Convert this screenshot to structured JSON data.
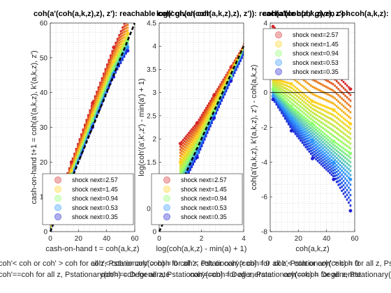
{
  "bottom_notes": [
    "coh'< coh or coh' > coh for all z, Pstationary(coh) = 0",
    "coh'==coh for all z, Pstationary(coh) = Degenerate"
  ],
  "colors": {
    "shock_2_57": "#d62728",
    "shock_1_45": "#ffd21e",
    "shock_0_94": "#8cff6e",
    "shock_0_53": "#2d96ff",
    "shock_0_35": "#1e1ed2",
    "diagonal": "#000000",
    "zero_line": "#000000"
  },
  "chart_data": [
    {
      "type": "scatter",
      "title": "coh(a'(coh(a,k,z),z), z'): reachable coh' given coh",
      "xlabel": "cash-on-hand t = coh(a,k,z)",
      "ylabel": "cash-on-hand t+1 = coh(a'(a,k,z), k'(a,k,z), z')",
      "xlim": [
        0,
        60
      ],
      "ylim": [
        0,
        60
      ],
      "xticks": [
        0,
        20,
        40,
        60
      ],
      "yticks": [
        0,
        10,
        20,
        30,
        40,
        50,
        60
      ],
      "grid": true,
      "legend_position": "bottom-right",
      "reference_line": "45-degree dashed",
      "series": [
        {
          "name": "shock next=2.57",
          "color": "#d62728",
          "x": [
            0,
            15,
            30,
            45,
            55
          ],
          "y": [
            2.6,
            20.0,
            37.0,
            53.0,
            62.0
          ]
        },
        {
          "name": "shock next=1.45",
          "color": "#ffd21e",
          "x": [
            0,
            15,
            30,
            45,
            55
          ],
          "y": [
            1.5,
            17.5,
            33.5,
            49.0,
            57.0
          ]
        },
        {
          "name": "shock next=0.94",
          "color": "#8cff6e",
          "x": [
            0,
            15,
            30,
            45,
            55
          ],
          "y": [
            0.9,
            16.5,
            32.0,
            47.0,
            55.0
          ]
        },
        {
          "name": "shock next=0.53",
          "color": "#2d96ff",
          "x": [
            0,
            15,
            30,
            45,
            55
          ],
          "y": [
            0.5,
            15.5,
            30.5,
            45.5,
            53.0
          ]
        },
        {
          "name": "shock next=0.35",
          "color": "#1e1ed2",
          "x": [
            0,
            15,
            30,
            45,
            55
          ],
          "y": [
            0.35,
            15.0,
            30.0,
            44.5,
            52.0
          ]
        }
      ]
    },
    {
      "type": "scatter",
      "title": "log(coh(a'(coh(a,k,z),z), z')): reachable coh' given coh",
      "xlabel": "log(coh(a,k,z) - min(a) + 1)",
      "ylabel": "log(coh'(a',k',z') - min(a') + 1)",
      "xlim": [
        0,
        4
      ],
      "ylim": [
        0,
        4.5
      ],
      "xticks": [
        0,
        2,
        4
      ],
      "yticks": [
        0,
        0.5,
        1,
        1.5,
        2,
        2.5,
        3,
        3.5,
        4,
        4.5
      ],
      "grid": true,
      "legend_position": "bottom-right",
      "reference_line": "45-degree dashed",
      "series": [
        {
          "name": "shock next=2.57",
          "color": "#d62728",
          "x": [
            1.0,
            1.8,
            2.6,
            3.4,
            4.05
          ],
          "y": [
            1.9,
            2.35,
            2.95,
            3.55,
            4.05
          ]
        },
        {
          "name": "shock next=1.45",
          "color": "#ffd21e",
          "x": [
            1.0,
            1.8,
            2.6,
            3.4,
            4.05
          ],
          "y": [
            1.5,
            2.05,
            2.75,
            3.45,
            4.0
          ]
        },
        {
          "name": "shock next=0.94",
          "color": "#8cff6e",
          "x": [
            1.0,
            1.8,
            2.6,
            3.4,
            4.05
          ],
          "y": [
            1.2,
            1.85,
            2.6,
            3.35,
            3.95
          ]
        },
        {
          "name": "shock next=0.53",
          "color": "#2d96ff",
          "x": [
            1.0,
            1.8,
            2.6,
            3.4,
            4.05
          ],
          "y": [
            1.0,
            1.7,
            2.5,
            3.3,
            3.9
          ]
        },
        {
          "name": "shock next=0.35",
          "color": "#1e1ed2",
          "x": [
            1.0,
            1.8,
            2.6,
            3.4,
            4.05
          ],
          "y": [
            0.9,
            1.6,
            2.45,
            3.25,
            3.87
          ]
        }
      ]
    },
    {
      "type": "scatter",
      "title": "coh(a'(coh(a,k,z),z), z') - coh(a,k,z): reachable coh' given coh",
      "xlabel": "coh(a,k,z)",
      "ylabel": "coh(a'(a,k,z), k'(a,k,z), z') - coh(a,k,z)",
      "xlim": [
        0,
        60
      ],
      "ylim": [
        -8,
        4
      ],
      "xticks": [
        0,
        20,
        40,
        60
      ],
      "yticks": [
        -8,
        -6,
        -4,
        -2,
        0,
        2,
        4
      ],
      "grid": true,
      "legend_position": "top-right",
      "reference_line": "y = 0",
      "series": [
        {
          "name": "shock next=2.57",
          "color": "#d62728",
          "x": [
            2,
            15,
            30,
            45,
            57
          ],
          "y": [
            3.8,
            2.8,
            2.0,
            1.2,
            0.2
          ]
        },
        {
          "name": "shock next=1.45",
          "color": "#ffd21e",
          "x": [
            2,
            15,
            30,
            45,
            57
          ],
          "y": [
            0.8,
            0.5,
            -0.5,
            -1.0,
            -1.8
          ]
        },
        {
          "name": "shock next=0.94",
          "color": "#8cff6e",
          "x": [
            2,
            15,
            30,
            45,
            57
          ],
          "y": [
            0.2,
            -0.8,
            -1.8,
            -2.8,
            -3.5
          ]
        },
        {
          "name": "shock next=0.53",
          "color": "#2d96ff",
          "x": [
            2,
            15,
            30,
            45,
            57
          ],
          "y": [
            -0.2,
            -1.5,
            -2.8,
            -4.0,
            -5.0
          ]
        },
        {
          "name": "shock next=0.35",
          "color": "#1e1ed2",
          "x": [
            2,
            15,
            30,
            45,
            57
          ],
          "y": [
            -0.4,
            -2.2,
            -3.8,
            -5.0,
            -6.8
          ]
        }
      ]
    }
  ]
}
